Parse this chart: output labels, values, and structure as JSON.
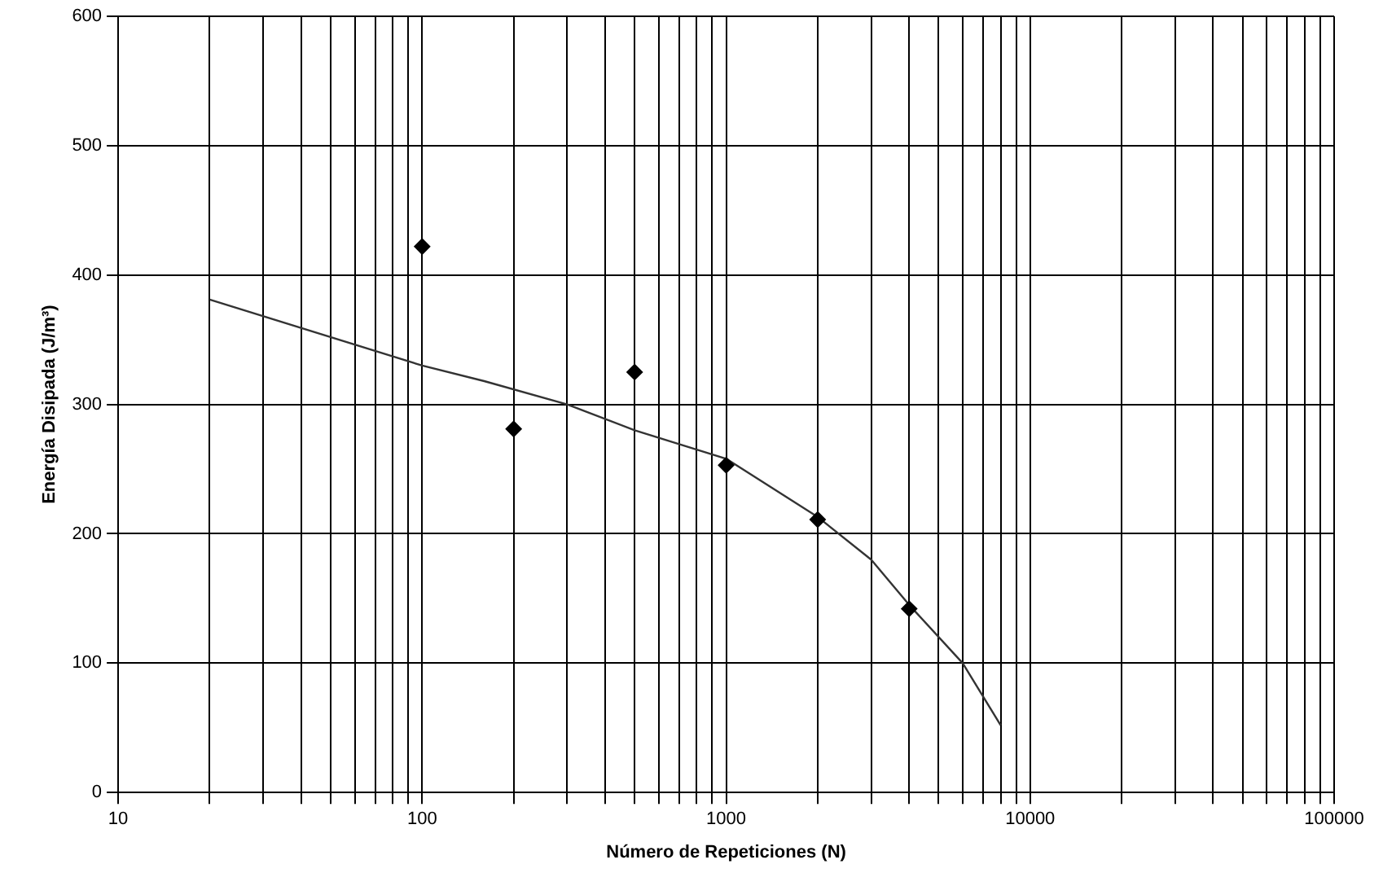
{
  "chart_data": {
    "type": "scatter",
    "xlabel": "Número de Repeticiones (N)",
    "ylabel": "Energía Disipada (J/m³)",
    "log": "x",
    "grid": true,
    "legend": false,
    "xlim": [
      10,
      100000
    ],
    "ylim": [
      0,
      600
    ],
    "xticks": [
      10,
      {
        "value": 20,
        "label": null
      },
      {
        "value": 30,
        "label": null
      },
      {
        "value": 40,
        "label": null
      },
      {
        "value": 50,
        "label": null
      },
      {
        "value": 60,
        "label": null
      },
      {
        "value": 70,
        "label": null
      },
      {
        "value": 80,
        "label": null
      },
      {
        "value": 90,
        "label": null
      },
      100,
      {
        "value": 200,
        "label": null
      },
      {
        "value": 300,
        "label": null
      },
      {
        "value": 400,
        "label": null
      },
      {
        "value": 500,
        "label": null
      },
      {
        "value": 600,
        "label": null
      },
      {
        "value": 700,
        "label": null
      },
      {
        "value": 800,
        "label": null
      },
      {
        "value": 900,
        "label": null
      },
      1000,
      {
        "value": 2000,
        "label": null
      },
      {
        "value": 3000,
        "label": null
      },
      {
        "value": 4000,
        "label": null
      },
      {
        "value": 5000,
        "label": null
      },
      {
        "value": 6000,
        "label": null
      },
      {
        "value": 7000,
        "label": null
      },
      {
        "value": 8000,
        "label": null
      },
      {
        "value": 9000,
        "label": null
      },
      10000,
      {
        "value": 20000,
        "label": null
      },
      {
        "value": 30000,
        "label": null
      },
      {
        "value": 40000,
        "label": null
      },
      {
        "value": 50000,
        "label": null
      },
      {
        "value": 60000,
        "label": null
      },
      {
        "value": 70000,
        "label": null
      },
      {
        "value": 80000,
        "label": null
      },
      {
        "value": 90000,
        "label": null
      },
      100000
    ],
    "yticks": [
      0,
      100,
      200,
      300,
      400,
      500,
      600
    ],
    "series": [
      {
        "type": "scatter",
        "color": "#000000",
        "marker": "diamond",
        "x": [
          100,
          200,
          500,
          1000,
          2000,
          4000
        ],
        "values": [
          422,
          281,
          325,
          253,
          211,
          142
        ]
      },
      {
        "type": "line",
        "color": "#333333",
        "marker": "none",
        "line_style": "solid",
        "x": [
          20,
          100,
          160,
          300,
          500,
          1000,
          2000,
          3000,
          4000,
          6000,
          8000
        ],
        "values": [
          381,
          330,
          318,
          300,
          280,
          258,
          213,
          180,
          145,
          100,
          52
        ]
      }
    ]
  }
}
